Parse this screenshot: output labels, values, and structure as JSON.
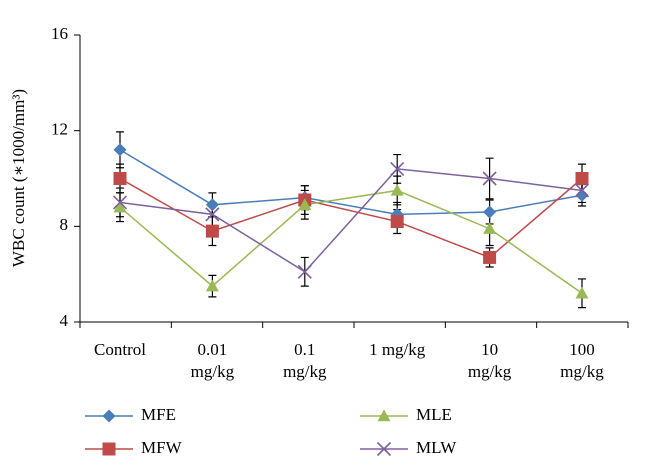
{
  "chart_data": {
    "type": "line",
    "y_label": "WBC count (∗1000/mm³)",
    "categories": [
      "Control",
      "0.01 mg/kg",
      "0.1 mg/kg",
      "1 mg/kg",
      "10 mg/kg",
      "100 mg/kg"
    ],
    "ylim": [
      4,
      16
    ],
    "yticks": [
      4,
      8,
      12,
      16
    ],
    "series": [
      {
        "name": "MFE",
        "color": "#4a7ebb",
        "marker": "diamond",
        "values": [
          11.2,
          8.9,
          9.2,
          8.5,
          8.6,
          9.3
        ],
        "errors": [
          0.75,
          0.5,
          0.5,
          0.5,
          0.5,
          0.45
        ]
      },
      {
        "name": "MFW",
        "color": "#be4b48",
        "marker": "square",
        "values": [
          10.0,
          7.8,
          9.1,
          8.2,
          6.7,
          10.0
        ],
        "errors": [
          0.6,
          0.6,
          0.6,
          0.5,
          0.4,
          0.6
        ]
      },
      {
        "name": "MLE",
        "color": "#98b954",
        "marker": "triangle",
        "values": [
          8.8,
          5.5,
          8.9,
          9.5,
          7.9,
          5.2
        ],
        "errors": [
          0.6,
          0.45,
          0.6,
          0.6,
          0.7,
          0.6
        ]
      },
      {
        "name": "MLW",
        "color": "#7d60a0",
        "marker": "x",
        "values": [
          9.0,
          8.5,
          6.1,
          10.4,
          10.0,
          9.5
        ],
        "errors": [
          0.6,
          0.5,
          0.6,
          0.6,
          0.85,
          0.5
        ]
      }
    ]
  }
}
